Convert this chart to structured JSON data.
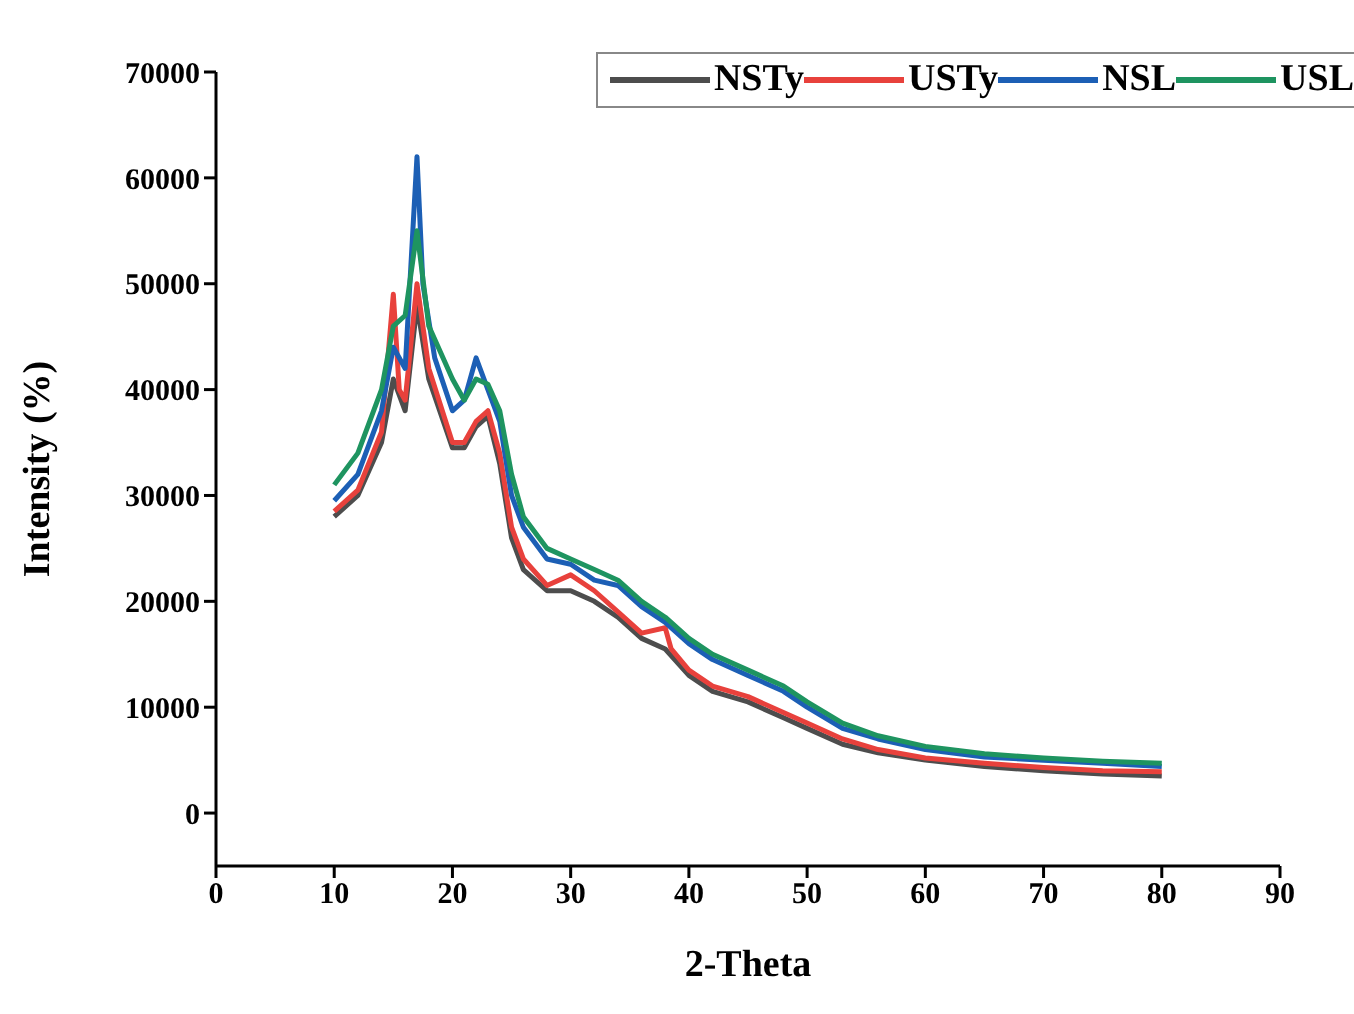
{
  "chart_data": {
    "type": "line",
    "xlabel": "2-Theta",
    "ylabel": "Intensity (%)",
    "xlim": [
      0,
      90
    ],
    "xticks": [
      0,
      10,
      20,
      30,
      40,
      50,
      60,
      70,
      80,
      90
    ],
    "ylim": [
      -5000,
      70000
    ],
    "yticks": [
      0,
      10000,
      20000,
      30000,
      40000,
      50000,
      60000,
      70000
    ],
    "grid": false,
    "legend": "top right",
    "marker": "none",
    "line_style": "solid",
    "series": [
      {
        "name": "NSTy",
        "color": "#4d4d4d",
        "x": [
          10,
          12,
          14,
          15,
          16,
          17,
          18,
          20,
          21,
          22,
          23,
          24,
          25,
          26,
          28,
          30,
          32,
          34,
          36,
          38,
          40,
          42,
          45,
          48,
          50,
          53,
          56,
          60,
          65,
          70,
          75,
          80
        ],
        "values": [
          28000,
          30000,
          35000,
          41000,
          38000,
          48000,
          41000,
          34500,
          34500,
          36500,
          37500,
          33000,
          26000,
          23000,
          21000,
          21000,
          20000,
          18500,
          16500,
          15500,
          13000,
          11500,
          10500,
          9000,
          8000,
          6500,
          5700,
          5000,
          4400,
          4000,
          3700,
          3500
        ]
      },
      {
        "name": "USTy",
        "color": "#e8413c",
        "x": [
          10,
          12,
          14,
          15,
          15.5,
          16,
          17,
          18,
          20,
          21,
          22,
          23,
          24,
          25,
          26,
          28,
          30,
          32,
          34,
          36,
          38,
          38.5,
          40,
          42,
          45,
          48,
          50,
          53,
          56,
          60,
          65,
          70,
          75,
          80
        ],
        "values": [
          28500,
          30500,
          36000,
          49000,
          40000,
          39000,
          50000,
          42000,
          35000,
          35000,
          37000,
          38000,
          34000,
          27000,
          24000,
          21500,
          22500,
          21000,
          19000,
          17000,
          17500,
          15500,
          13500,
          12000,
          11000,
          9500,
          8500,
          7000,
          6000,
          5200,
          4700,
          4300,
          4000,
          3900
        ]
      },
      {
        "name": "NSL",
        "color": "#1c5fb5",
        "x": [
          10,
          12,
          14,
          15,
          16,
          17,
          17.5,
          18.5,
          20,
          21,
          22,
          23,
          24,
          25,
          26,
          28,
          30,
          32,
          34,
          36,
          38,
          40,
          42,
          45,
          48,
          50,
          53,
          56,
          60,
          65,
          70,
          75,
          80
        ],
        "values": [
          29500,
          32000,
          38000,
          44000,
          42000,
          62000,
          50000,
          43000,
          38000,
          39000,
          43000,
          40000,
          37000,
          30000,
          27000,
          24000,
          23500,
          22000,
          21500,
          19500,
          18000,
          16000,
          14500,
          13000,
          11500,
          10000,
          8000,
          7000,
          6000,
          5300,
          5000,
          4700,
          4400
        ]
      },
      {
        "name": "USL",
        "color": "#1e9460",
        "x": [
          10,
          12,
          14,
          15,
          16,
          17,
          18,
          20,
          21,
          22,
          23,
          24,
          25,
          26,
          28,
          30,
          32,
          34,
          36,
          38,
          40,
          42,
          45,
          48,
          50,
          53,
          56,
          60,
          65,
          70,
          75,
          80
        ],
        "values": [
          31000,
          34000,
          40000,
          46000,
          47000,
          55000,
          46000,
          41000,
          39000,
          41000,
          40500,
          38000,
          32000,
          28000,
          25000,
          24000,
          23000,
          22000,
          20000,
          18500,
          16500,
          15000,
          13500,
          12000,
          10500,
          8500,
          7300,
          6300,
          5600,
          5200,
          4900,
          4700
        ]
      }
    ]
  }
}
